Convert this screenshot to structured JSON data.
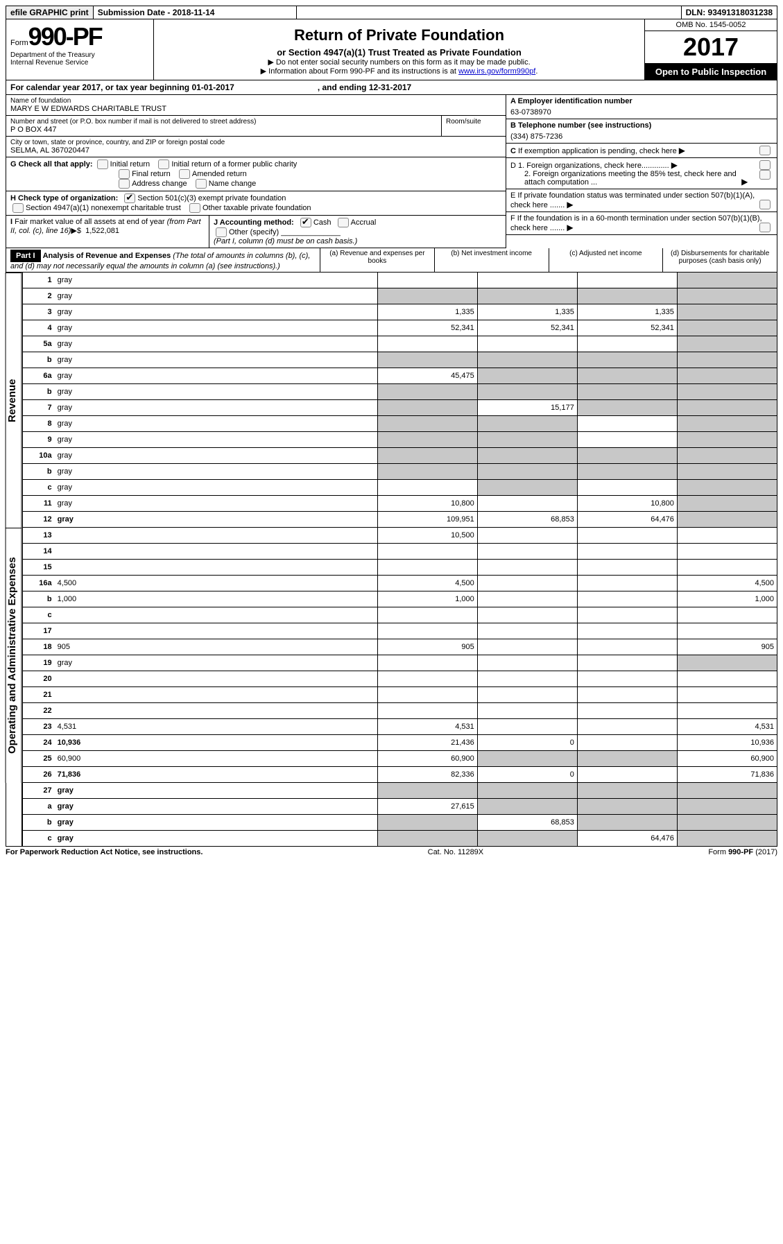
{
  "top": {
    "efile": "efile GRAPHIC print",
    "submission": "Submission Date - 2018-11-14",
    "dln": "DLN: 93491318031238"
  },
  "header": {
    "form_prefix": "Form",
    "form_number": "990-PF",
    "dept1": "Department of the Treasury",
    "dept2": "Internal Revenue Service",
    "title": "Return of Private Foundation",
    "subtitle": "or Section 4947(a)(1) Trust Treated as Private Foundation",
    "note1": "▶ Do not enter social security numbers on this form as it may be made public.",
    "note2_pre": "▶ Information about Form 990-PF and its instructions is at ",
    "note2_link": "www.irs.gov/form990pf",
    "omb": "OMB No. 1545-0052",
    "year": "2017",
    "open": "Open to Public Inspection"
  },
  "cal": {
    "text_a": "For calendar year 2017, or tax year beginning 01-01-2017",
    "text_b": ", and ending 12-31-2017"
  },
  "name_block": {
    "label": "Name of foundation",
    "value": "MARY E W EDWARDS CHARITABLE TRUST",
    "addr_label": "Number and street (or P.O. box number if mail is not delivered to street address)",
    "addr_value": "P O BOX 447",
    "room_label": "Room/suite",
    "city_label": "City or town, state or province, country, and ZIP or foreign postal code",
    "city_value": "SELMA, AL  367020447"
  },
  "right_block": {
    "a_label": "A Employer identification number",
    "a_value": "63-0738970",
    "b_label": "B Telephone number (see instructions)",
    "b_value": "(334) 875-7236",
    "c_label": "C If exemption application is pending, check here",
    "d1": "D 1. Foreign organizations, check here.............",
    "d2": "2. Foreign organizations meeting the 85% test, check here and attach computation ...",
    "e": "E  If private foundation status was terminated under section 507(b)(1)(A), check here .......",
    "f": "F  If the foundation is in a 60-month termination under section 507(b)(1)(B), check here .......",
    "g_label": "G Check all that apply:",
    "g_opts": [
      "Initial return",
      "Initial return of a former public charity",
      "Final return",
      "Amended return",
      "Address change",
      "Name change"
    ],
    "h_label": "H Check type of organization:",
    "h_opts": [
      "Section 501(c)(3) exempt private foundation",
      "Section 4947(a)(1) nonexempt charitable trust",
      "Other taxable private foundation"
    ],
    "i_label": "I Fair market value of all assets at end of year (from Part II, col. (c), line 16)▶$  1,522,081",
    "j_label": "J Accounting method:",
    "j_cash": "Cash",
    "j_accrual": "Accrual",
    "j_other": "Other (specify)",
    "j_note": "(Part I, column (d) must be on cash basis.)"
  },
  "part1": {
    "label": "Part I",
    "title": "Analysis of Revenue and Expenses",
    "title_note": " (The total of amounts in columns (b), (c), and (d) may not necessarily equal the amounts in column (a) (see instructions).)",
    "cols": {
      "a": "(a)   Revenue and expenses per books",
      "b": "(b)  Net investment income",
      "c": "(c)  Adjusted net income",
      "d": "(d)  Disbursements for charitable purposes (cash basis only)"
    }
  },
  "vert": {
    "rev": "Revenue",
    "exp": "Operating and Administrative Expenses"
  },
  "rows": [
    {
      "n": "1",
      "d": "gray",
      "a": "",
      "b": "",
      "c": ""
    },
    {
      "n": "2",
      "d": "gray",
      "a": "gray",
      "b": "gray",
      "c": "gray",
      "noB": true
    },
    {
      "n": "3",
      "d": "gray",
      "a": "1,335",
      "b": "1,335",
      "c": "1,335"
    },
    {
      "n": "4",
      "d": "gray",
      "a": "52,341",
      "b": "52,341",
      "c": "52,341"
    },
    {
      "n": "5a",
      "d": "gray",
      "a": "",
      "b": "",
      "c": ""
    },
    {
      "n": "b",
      "d": "gray",
      "a": "gray",
      "b": "gray",
      "c": "gray"
    },
    {
      "n": "6a",
      "d": "gray",
      "a": "45,475",
      "b": "gray",
      "c": "gray"
    },
    {
      "n": "b",
      "d": "gray",
      "a": "gray",
      "b": "gray",
      "c": "gray"
    },
    {
      "n": "7",
      "d": "gray",
      "a": "gray",
      "b": "15,177",
      "c": "gray"
    },
    {
      "n": "8",
      "d": "gray",
      "a": "gray",
      "b": "gray",
      "c": ""
    },
    {
      "n": "9",
      "d": "gray",
      "a": "gray",
      "b": "gray",
      "c": ""
    },
    {
      "n": "10a",
      "d": "gray",
      "a": "gray",
      "b": "gray",
      "c": "gray"
    },
    {
      "n": "b",
      "d": "gray",
      "a": "gray",
      "b": "gray",
      "c": "gray"
    },
    {
      "n": "c",
      "d": "gray",
      "a": "",
      "b": "gray",
      "c": ""
    },
    {
      "n": "11",
      "d": "gray",
      "a": "10,800",
      "b": "",
      "c": "10,800"
    },
    {
      "n": "12",
      "d": "gray",
      "a": "109,951",
      "b": "68,853",
      "c": "64,476",
      "bold": true
    }
  ],
  "exp_rows": [
    {
      "n": "13",
      "d": "",
      "a": "10,500",
      "b": "",
      "c": ""
    },
    {
      "n": "14",
      "d": "",
      "a": "",
      "b": "",
      "c": ""
    },
    {
      "n": "15",
      "d": "",
      "a": "",
      "b": "",
      "c": ""
    },
    {
      "n": "16a",
      "d": "4,500",
      "a": "4,500",
      "b": "",
      "c": ""
    },
    {
      "n": "b",
      "d": "1,000",
      "a": "1,000",
      "b": "",
      "c": ""
    },
    {
      "n": "c",
      "d": "",
      "a": "",
      "b": "",
      "c": ""
    },
    {
      "n": "17",
      "d": "",
      "a": "",
      "b": "",
      "c": ""
    },
    {
      "n": "18",
      "d": "905",
      "a": "905",
      "b": "",
      "c": ""
    },
    {
      "n": "19",
      "d": "gray",
      "a": "",
      "b": "",
      "c": ""
    },
    {
      "n": "20",
      "d": "",
      "a": "",
      "b": "",
      "c": ""
    },
    {
      "n": "21",
      "d": "",
      "a": "",
      "b": "",
      "c": ""
    },
    {
      "n": "22",
      "d": "",
      "a": "",
      "b": "",
      "c": ""
    },
    {
      "n": "23",
      "d": "4,531",
      "a": "4,531",
      "b": "",
      "c": ""
    },
    {
      "n": "24",
      "d": "10,936",
      "a": "21,436",
      "b": "0",
      "c": "",
      "bold": true
    },
    {
      "n": "25",
      "d": "60,900",
      "a": "60,900",
      "b": "gray",
      "c": "gray"
    },
    {
      "n": "26",
      "d": "71,836",
      "a": "82,336",
      "b": "0",
      "c": "",
      "bold": true
    }
  ],
  "bottom_rows": [
    {
      "n": "27",
      "d": "gray",
      "a": "gray",
      "b": "gray",
      "c": "gray",
      "bold": true
    },
    {
      "n": "a",
      "d": "gray",
      "a": "27,615",
      "b": "gray",
      "c": "gray",
      "bold": true
    },
    {
      "n": "b",
      "d": "gray",
      "a": "gray",
      "b": "68,853",
      "c": "gray",
      "bold": true
    },
    {
      "n": "c",
      "d": "gray",
      "a": "gray",
      "b": "gray",
      "c": "64,476",
      "bold": true
    }
  ],
  "footer": {
    "left": "For Paperwork Reduction Act Notice, see instructions.",
    "mid": "Cat. No. 11289X",
    "right": "Form 990-PF (2017)"
  }
}
